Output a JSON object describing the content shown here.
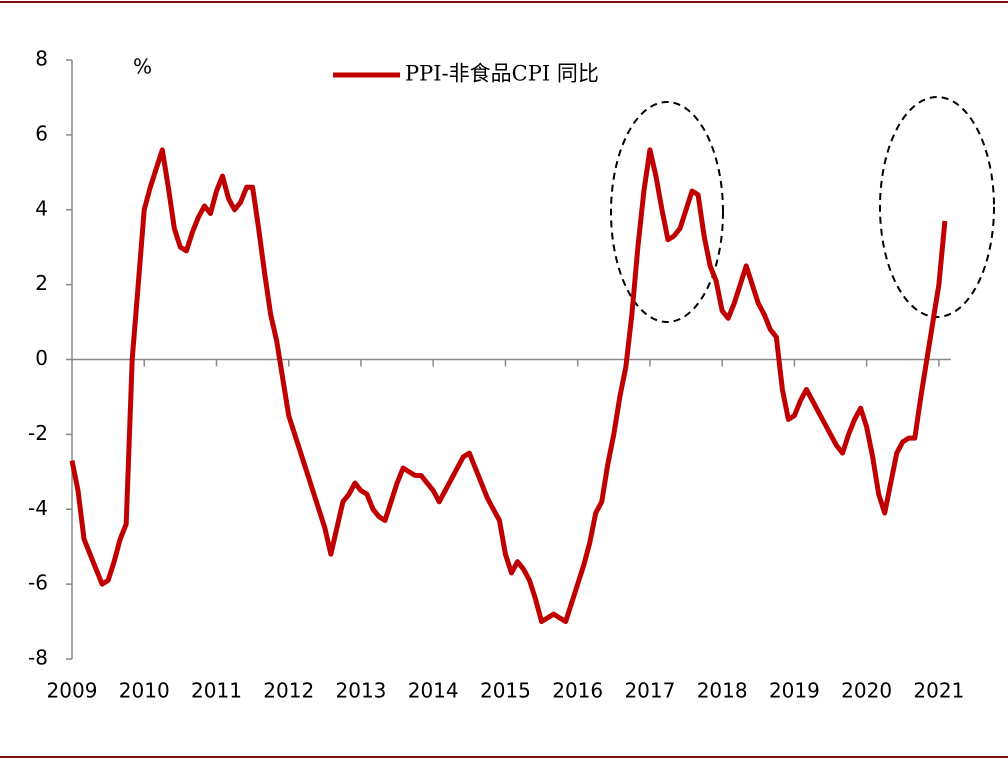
{
  "chart_data": {
    "type": "line",
    "y_unit": "%",
    "categories": [
      "2009",
      null,
      null,
      null,
      null,
      null,
      null,
      null,
      null,
      null,
      null,
      null,
      "2010",
      null,
      null,
      null,
      null,
      null,
      null,
      null,
      null,
      null,
      null,
      null,
      "2011",
      null,
      null,
      null,
      null,
      null,
      null,
      null,
      null,
      null,
      null,
      null,
      "2012",
      null,
      null,
      null,
      null,
      null,
      null,
      null,
      null,
      null,
      null,
      null,
      "2013",
      null,
      null,
      null,
      null,
      null,
      null,
      null,
      null,
      null,
      null,
      null,
      "2014",
      null,
      null,
      null,
      null,
      null,
      null,
      null,
      null,
      null,
      null,
      null,
      "2015",
      null,
      null,
      null,
      null,
      null,
      null,
      null,
      null,
      null,
      null,
      null,
      "2016",
      null,
      null,
      null,
      null,
      null,
      null,
      null,
      null,
      null,
      null,
      null,
      "2017",
      null,
      null,
      null,
      null,
      null,
      null,
      null,
      null,
      null,
      null,
      null,
      "2018",
      null,
      null,
      null,
      null,
      null,
      null,
      null,
      null,
      null,
      null,
      null,
      "2019",
      null,
      null,
      null,
      null,
      null,
      null,
      null,
      null,
      null,
      null,
      null,
      "2020",
      null,
      null,
      null,
      null,
      null,
      null,
      null,
      null,
      null,
      null,
      null,
      "2021",
      null
    ],
    "series": [
      {
        "name": "PPI-非食品CPI 同比",
        "color": "#c00000",
        "values": [
          -2.7,
          -3.5,
          -4.8,
          -5.2,
          -5.6,
          -6.0,
          -5.9,
          -5.4,
          -4.8,
          -4.4,
          0.0,
          2.0,
          4.0,
          4.6,
          5.1,
          5.6,
          4.6,
          3.5,
          3.0,
          2.9,
          3.4,
          3.8,
          4.1,
          3.9,
          4.5,
          4.9,
          4.3,
          4.0,
          4.2,
          4.6,
          4.6,
          3.5,
          2.3,
          1.2,
          0.5,
          -0.5,
          -1.5,
          -2.0,
          -2.5,
          -3.0,
          -3.5,
          -4.0,
          -4.5,
          -5.2,
          -4.5,
          -3.8,
          -3.6,
          -3.3,
          -3.5,
          -3.6,
          -4.0,
          -4.2,
          -4.3,
          -3.8,
          -3.3,
          -2.9,
          -3.0,
          -3.1,
          -3.1,
          -3.3,
          -3.5,
          -3.8,
          -3.5,
          -3.2,
          -2.9,
          -2.6,
          -2.5,
          -2.9,
          -3.3,
          -3.7,
          -4.0,
          -4.3,
          -5.2,
          -5.7,
          -5.4,
          -5.6,
          -5.9,
          -6.4,
          -7.0,
          -6.9,
          -6.8,
          -6.9,
          -7.0,
          -6.5,
          -6.0,
          -5.5,
          -4.9,
          -4.1,
          -3.8,
          -2.8,
          -2.0,
          -1.0,
          -0.2,
          1.2,
          3.0,
          4.5,
          5.6,
          4.9,
          4.0,
          3.2,
          3.3,
          3.5,
          4.0,
          4.5,
          4.4,
          3.3,
          2.5,
          2.1,
          1.3,
          1.1,
          1.5,
          2.0,
          2.5,
          2.0,
          1.5,
          1.2,
          0.8,
          0.6,
          -0.8,
          -1.6,
          -1.5,
          -1.1,
          -0.8,
          -1.1,
          -1.4,
          -1.7,
          -2.0,
          -2.3,
          -2.5,
          -2.0,
          -1.6,
          -1.3,
          -1.8,
          -2.6,
          -3.6,
          -4.1,
          -3.3,
          -2.5,
          -2.2,
          -2.1,
          -2.1,
          -1.0,
          0.0,
          1.0,
          2.0,
          3.7
        ]
      }
    ],
    "ylim": [
      -8,
      8
    ],
    "yticks": [
      -8,
      -6,
      -4,
      -2,
      0,
      2,
      4,
      6,
      8
    ],
    "grid": false,
    "legend": "top"
  }
}
